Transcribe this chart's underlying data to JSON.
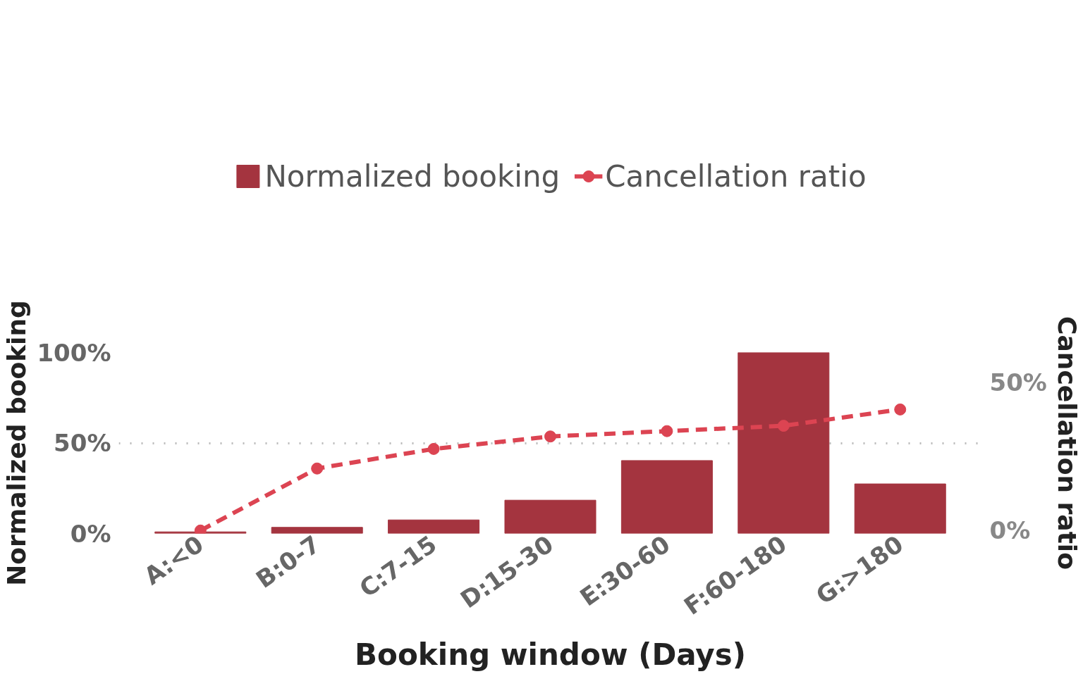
{
  "chart_data": {
    "type": "bar",
    "xlabel": "Booking window (Days)",
    "ylabel": "Normalized booking",
    "y2label": "Cancellation ratio",
    "categories": [
      "A:<0",
      "B:0-7",
      "C:7-15",
      "D:15-30",
      "E:30-60",
      "F:60-180",
      "G:>180"
    ],
    "series": [
      {
        "name": "Normalized booking",
        "color": "#a4343f",
        "values": [
          0.9,
          3.4,
          7.5,
          18.4,
          40.3,
          100,
          27.4
        ]
      },
      {
        "name": "Cancellation ratio",
        "type": "line",
        "axis": "y2",
        "color": "#dc4452",
        "marker": "circle",
        "line_style": "dashed",
        "values": [
          0,
          20.9,
          27.5,
          31.7,
          33.5,
          35.3,
          40.8
        ]
      }
    ],
    "ylim": [
      0,
      100
    ],
    "yticks": [
      {
        "value": 0,
        "label": "0%"
      },
      {
        "value": 50,
        "label": "50%"
      },
      {
        "value": 100,
        "label": "100%"
      }
    ],
    "y2lim": [
      -1,
      60
    ],
    "y2ticks": [
      {
        "value": 0,
        "label": "0%"
      },
      {
        "value": 50,
        "label": "50%"
      }
    ],
    "grid": "y",
    "legend": "top"
  }
}
